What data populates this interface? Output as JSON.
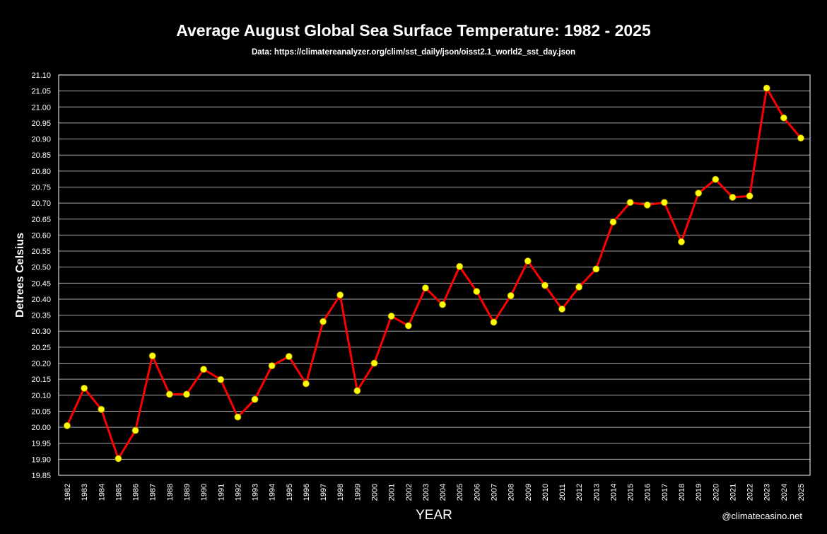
{
  "chart_data": {
    "type": "line",
    "title": "Average August Global Sea Surface Temperature: 1982 - 2025",
    "subtitle": "Data: https://climatereanalyzer.org/clim/sst_daily/json/oisst2.1_world2_sst_day.json",
    "xlabel": "YEAR",
    "ylabel": "Detrees Celsius",
    "ylim": [
      19.85,
      21.1
    ],
    "ytick_step": 0.05,
    "grid": true,
    "categories": [
      "1982",
      "1983",
      "1984",
      "1985",
      "1986",
      "1987",
      "1988",
      "1989",
      "1990",
      "1991",
      "1992",
      "1993",
      "1994",
      "1995",
      "1996",
      "1997",
      "1998",
      "1999",
      "2000",
      "2001",
      "2002",
      "2003",
      "2004",
      "2005",
      "2006",
      "2007",
      "2008",
      "2009",
      "2010",
      "2011",
      "2012",
      "2013",
      "2014",
      "2015",
      "2016",
      "2017",
      "2018",
      "2019",
      "2020",
      "2021",
      "2022",
      "2023",
      "2024",
      "2025"
    ],
    "series": [
      {
        "values": [
          20.005,
          20.122,
          20.056,
          19.902,
          19.99,
          20.223,
          20.103,
          20.103,
          20.181,
          20.149,
          20.032,
          20.087,
          20.192,
          20.221,
          20.136,
          20.33,
          20.413,
          20.114,
          20.2,
          20.347,
          20.317,
          20.435,
          20.383,
          20.502,
          20.424,
          20.328,
          20.411,
          20.519,
          20.443,
          20.369,
          20.438,
          20.494,
          20.641,
          20.702,
          20.694,
          20.702,
          20.579,
          20.731,
          20.774,
          20.718,
          20.722,
          21.059,
          20.966,
          20.903
        ],
        "line_color": "#ff0000",
        "marker_color": "#ffff00"
      }
    ],
    "watermark": "@climatecasino.net"
  }
}
